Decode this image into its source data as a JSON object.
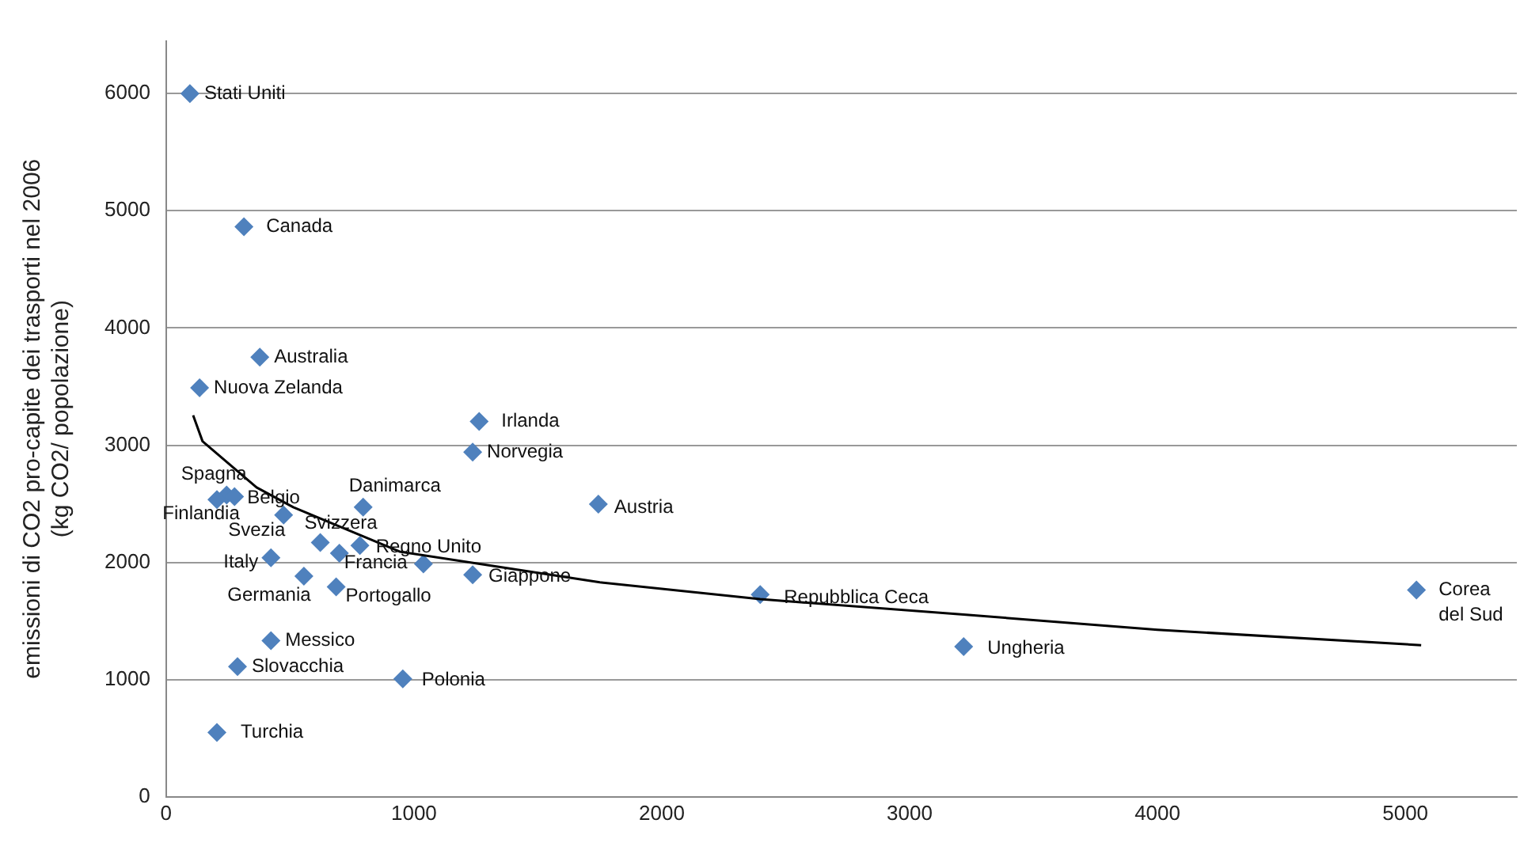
{
  "chart_data": {
    "type": "scatter",
    "ylabel": "emissioni di CO2 pro-capite dei trasporti nel 2006\n(kg CO2/ popolazione)",
    "xlim": [
      0,
      5450
    ],
    "xticks": [
      0,
      1000,
      2000,
      3000,
      4000,
      5000
    ],
    "ylim": [
      0,
      6450
    ],
    "yticks": [
      0,
      1000,
      2000,
      3000,
      4000,
      5000,
      6000
    ],
    "grid": "y",
    "legend": false,
    "marker": "diamond",
    "series": [
      {
        "color": "#4f81bd",
        "x": [
          96,
          314,
          378,
          135,
          1263,
          1237,
          1744,
          244,
          276,
          205,
          795,
          474,
          622,
          782,
          699,
          423,
          556,
          686,
          1237,
          423,
          288,
          955,
          205,
          2397,
          3218,
          5045,
          1038
        ],
        "values": [
          6000,
          4863,
          3752,
          3490,
          3203,
          2941,
          2497,
          2575,
          2562,
          2536,
          2471,
          2405,
          2170,
          2144,
          2078,
          2039,
          1882,
          1791,
          1895,
          1333,
          1111,
          1007,
          549,
          1725,
          1281,
          1765,
          1987
        ]
      },
      {
        "type": "line",
        "color": "#000000",
        "marker": "none",
        "line_style": "solid",
        "x": [
          109,
          147,
          365,
          513,
          942,
          1750,
          2397,
          3218,
          4000,
          5064
        ],
        "values": [
          3255,
          3033,
          2640,
          2471,
          2092,
          1830,
          1686,
          1555,
          1425,
          1294
        ]
      }
    ],
    "annotations": [
      {
        "text": "Stati Uniti",
        "x": 96,
        "y": 6000
      },
      {
        "text": "Canada",
        "x": 314,
        "y": 4863
      },
      {
        "text": "Australia",
        "x": 378,
        "y": 3752
      },
      {
        "text": "Nuova Zelanda",
        "x": 135,
        "y": 3490
      },
      {
        "text": "Irlanda",
        "x": 1263,
        "y": 3203
      },
      {
        "text": "Norvegia",
        "x": 1237,
        "y": 2941
      },
      {
        "text": "Austria",
        "x": 1744,
        "y": 2497
      },
      {
        "text": "Spagna",
        "x": 244,
        "y": 2575
      },
      {
        "text": "Belgio",
        "x": 276,
        "y": 2562
      },
      {
        "text": "Finlandia",
        "x": 205,
        "y": 2536
      },
      {
        "text": "Danimarca",
        "x": 795,
        "y": 2471
      },
      {
        "text": "Svezia",
        "x": 474,
        "y": 2405
      },
      {
        "text": "Svizzera",
        "x": 622,
        "y": 2170
      },
      {
        "text": "Regno Unito",
        "x": 782,
        "y": 2144
      },
      {
        "text": "Francia",
        "x": 699,
        "y": 2078
      },
      {
        "text": "Italy",
        "x": 423,
        "y": 2039
      },
      {
        "text": "Germania",
        "x": 556,
        "y": 1882
      },
      {
        "text": "Portogallo",
        "x": 686,
        "y": 1791
      },
      {
        "text": "Giappone",
        "x": 1237,
        "y": 1895
      },
      {
        "text": "Messico",
        "x": 423,
        "y": 1333
      },
      {
        "text": "Slovacchia",
        "x": 288,
        "y": 1111
      },
      {
        "text": "Polonia",
        "x": 955,
        "y": 1007
      },
      {
        "text": "Turchia",
        "x": 205,
        "y": 549
      },
      {
        "text": "Repubblica Ceca",
        "x": 2397,
        "y": 1725
      },
      {
        "text": "Ungheria",
        "x": 3218,
        "y": 1281
      },
      {
        "text": "Corea del Sud",
        "x": 5045,
        "y": 1765
      }
    ]
  }
}
